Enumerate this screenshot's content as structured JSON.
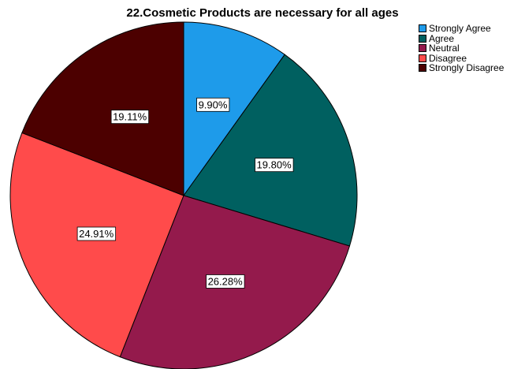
{
  "chart_data": {
    "type": "pie",
    "title": "22.Cosmetic Products are necessary for all ages",
    "legend_position": "top-right",
    "slices": [
      {
        "label": "Strongly Agree",
        "value": 9.9,
        "display": "9.90%",
        "color": "#1E9BEA"
      },
      {
        "label": "Agree",
        "value": 19.8,
        "display": "19.80%",
        "color": "#006060"
      },
      {
        "label": "Neutral",
        "value": 26.28,
        "display": "26.28%",
        "color": "#941A4C"
      },
      {
        "label": "Disagree",
        "value": 24.91,
        "display": "24.91%",
        "color": "#FF4B4B"
      },
      {
        "label": "Strongly Disagree",
        "value": 19.11,
        "display": "19.11%",
        "color": "#4C0000"
      }
    ]
  }
}
